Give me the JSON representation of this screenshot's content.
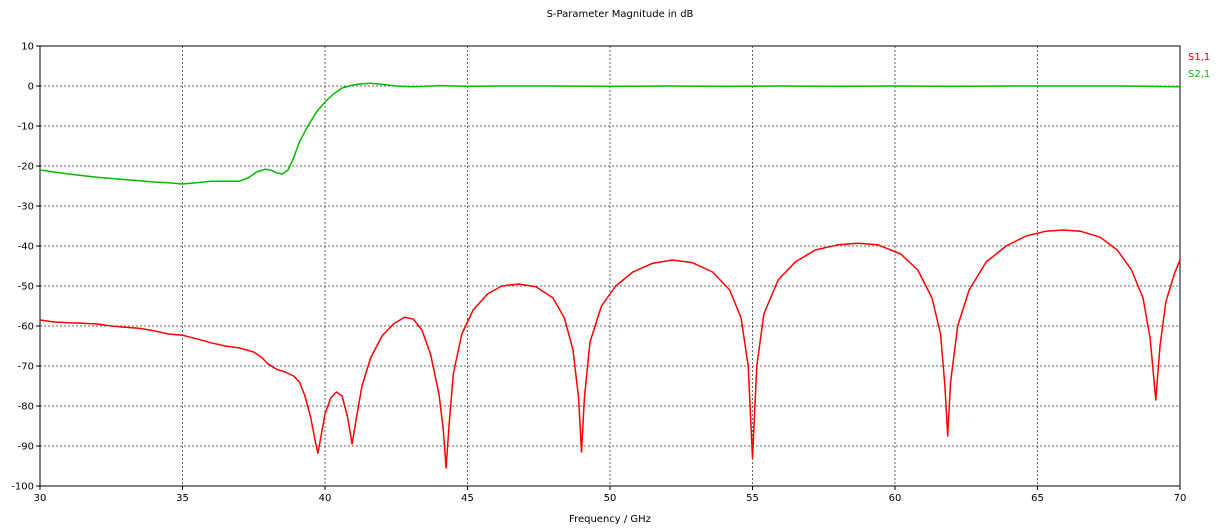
{
  "chart_data": {
    "type": "line",
    "title": "S-Parameter Magnitude in dB",
    "xlabel": "Frequency / GHz",
    "ylabel": "",
    "xlim": [
      30,
      70
    ],
    "ylim": [
      -100,
      10
    ],
    "grid": true,
    "legend_position": "right",
    "x_ticks": [
      30,
      35,
      40,
      45,
      50,
      55,
      60,
      65,
      70
    ],
    "y_ticks": [
      10,
      0,
      -10,
      -20,
      -30,
      -40,
      -50,
      -60,
      -70,
      -80,
      -90,
      -100
    ],
    "series": [
      {
        "name": "S1,1",
        "color": "#ff0000",
        "points": [
          [
            30.0,
            -58.5
          ],
          [
            30.5,
            -59.0
          ],
          [
            31.0,
            -59.2
          ],
          [
            31.5,
            -59.3
          ],
          [
            32.0,
            -59.5
          ],
          [
            32.5,
            -60.0
          ],
          [
            33.0,
            -60.3
          ],
          [
            33.5,
            -60.6
          ],
          [
            34.0,
            -61.2
          ],
          [
            34.5,
            -62.0
          ],
          [
            35.0,
            -62.3
          ],
          [
            35.5,
            -63.2
          ],
          [
            36.0,
            -64.2
          ],
          [
            36.5,
            -65.0
          ],
          [
            37.0,
            -65.5
          ],
          [
            37.5,
            -66.5
          ],
          [
            37.8,
            -68.0
          ],
          [
            38.0,
            -69.5
          ],
          [
            38.3,
            -70.8
          ],
          [
            38.6,
            -71.5
          ],
          [
            38.9,
            -72.5
          ],
          [
            39.1,
            -74.0
          ],
          [
            39.3,
            -77.5
          ],
          [
            39.5,
            -83.0
          ],
          [
            39.65,
            -88.5
          ],
          [
            39.75,
            -91.8
          ],
          [
            39.85,
            -88.0
          ],
          [
            40.0,
            -82.0
          ],
          [
            40.2,
            -78.0
          ],
          [
            40.4,
            -76.5
          ],
          [
            40.6,
            -77.5
          ],
          [
            40.8,
            -83.0
          ],
          [
            40.95,
            -89.5
          ],
          [
            41.1,
            -83.0
          ],
          [
            41.3,
            -75.0
          ],
          [
            41.6,
            -68.0
          ],
          [
            42.0,
            -62.5
          ],
          [
            42.4,
            -59.5
          ],
          [
            42.8,
            -57.8
          ],
          [
            43.1,
            -58.3
          ],
          [
            43.4,
            -61.0
          ],
          [
            43.7,
            -67.0
          ],
          [
            44.0,
            -77.0
          ],
          [
            44.15,
            -86.0
          ],
          [
            44.25,
            -95.5
          ],
          [
            44.35,
            -85.0
          ],
          [
            44.5,
            -72.0
          ],
          [
            44.8,
            -62.0
          ],
          [
            45.2,
            -56.0
          ],
          [
            45.7,
            -52.0
          ],
          [
            46.2,
            -50.0
          ],
          [
            46.8,
            -49.5
          ],
          [
            47.4,
            -50.2
          ],
          [
            48.0,
            -53.0
          ],
          [
            48.4,
            -58.0
          ],
          [
            48.7,
            -66.0
          ],
          [
            48.9,
            -78.0
          ],
          [
            49.0,
            -91.5
          ],
          [
            49.1,
            -78.0
          ],
          [
            49.3,
            -64.0
          ],
          [
            49.7,
            -55.0
          ],
          [
            50.2,
            -50.0
          ],
          [
            50.8,
            -46.5
          ],
          [
            51.5,
            -44.3
          ],
          [
            52.2,
            -43.5
          ],
          [
            52.9,
            -44.2
          ],
          [
            53.6,
            -46.5
          ],
          [
            54.2,
            -51.0
          ],
          [
            54.6,
            -58.0
          ],
          [
            54.85,
            -70.0
          ],
          [
            55.0,
            -93.0
          ],
          [
            55.15,
            -70.0
          ],
          [
            55.4,
            -57.0
          ],
          [
            55.9,
            -48.5
          ],
          [
            56.5,
            -44.0
          ],
          [
            57.2,
            -41.0
          ],
          [
            58.0,
            -39.7
          ],
          [
            58.7,
            -39.3
          ],
          [
            59.4,
            -39.7
          ],
          [
            60.2,
            -42.0
          ],
          [
            60.8,
            -46.0
          ],
          [
            61.3,
            -53.0
          ],
          [
            61.6,
            -62.0
          ],
          [
            61.75,
            -75.0
          ],
          [
            61.85,
            -87.5
          ],
          [
            61.95,
            -74.0
          ],
          [
            62.2,
            -60.0
          ],
          [
            62.6,
            -51.0
          ],
          [
            63.2,
            -44.0
          ],
          [
            63.9,
            -40.0
          ],
          [
            64.6,
            -37.5
          ],
          [
            65.3,
            -36.3
          ],
          [
            65.9,
            -36.0
          ],
          [
            66.5,
            -36.3
          ],
          [
            67.2,
            -37.8
          ],
          [
            67.8,
            -41.0
          ],
          [
            68.3,
            -46.0
          ],
          [
            68.7,
            -53.0
          ],
          [
            68.95,
            -63.0
          ],
          [
            69.15,
            -78.5
          ],
          [
            69.3,
            -65.0
          ],
          [
            69.5,
            -54.0
          ],
          [
            69.8,
            -47.0
          ],
          [
            70.0,
            -43.5
          ]
        ]
      },
      {
        "name": "S2,1",
        "color": "#00bb00",
        "points": [
          [
            30.0,
            -21.0
          ],
          [
            31.0,
            -22.0
          ],
          [
            32.0,
            -22.8
          ],
          [
            33.0,
            -23.4
          ],
          [
            34.0,
            -24.0
          ],
          [
            34.5,
            -24.2
          ],
          [
            35.0,
            -24.5
          ],
          [
            35.5,
            -24.2
          ],
          [
            36.0,
            -23.8
          ],
          [
            36.5,
            -23.8
          ],
          [
            37.0,
            -23.8
          ],
          [
            37.3,
            -23.0
          ],
          [
            37.6,
            -21.5
          ],
          [
            37.9,
            -20.8
          ],
          [
            38.1,
            -21.0
          ],
          [
            38.3,
            -21.7
          ],
          [
            38.5,
            -22.0
          ],
          [
            38.7,
            -21.0
          ],
          [
            38.9,
            -18.0
          ],
          [
            39.1,
            -14.0
          ],
          [
            39.4,
            -10.0
          ],
          [
            39.7,
            -6.5
          ],
          [
            40.0,
            -4.0
          ],
          [
            40.3,
            -2.0
          ],
          [
            40.6,
            -0.5
          ],
          [
            40.9,
            0.1
          ],
          [
            41.2,
            0.5
          ],
          [
            41.6,
            0.7
          ],
          [
            42.0,
            0.4
          ],
          [
            42.5,
            0.0
          ],
          [
            43.0,
            -0.2
          ],
          [
            43.5,
            -0.1
          ],
          [
            44.0,
            0.1
          ],
          [
            44.5,
            0.0
          ],
          [
            45.0,
            -0.1
          ],
          [
            46.0,
            0.0
          ],
          [
            48.0,
            0.0
          ],
          [
            50.0,
            -0.1
          ],
          [
            52.0,
            0.0
          ],
          [
            54.0,
            -0.1
          ],
          [
            56.0,
            0.0
          ],
          [
            58.0,
            -0.1
          ],
          [
            60.0,
            0.0
          ],
          [
            62.0,
            -0.1
          ],
          [
            64.0,
            0.0
          ],
          [
            66.0,
            0.0
          ],
          [
            68.0,
            0.0
          ],
          [
            70.0,
            -0.2
          ]
        ]
      }
    ]
  }
}
